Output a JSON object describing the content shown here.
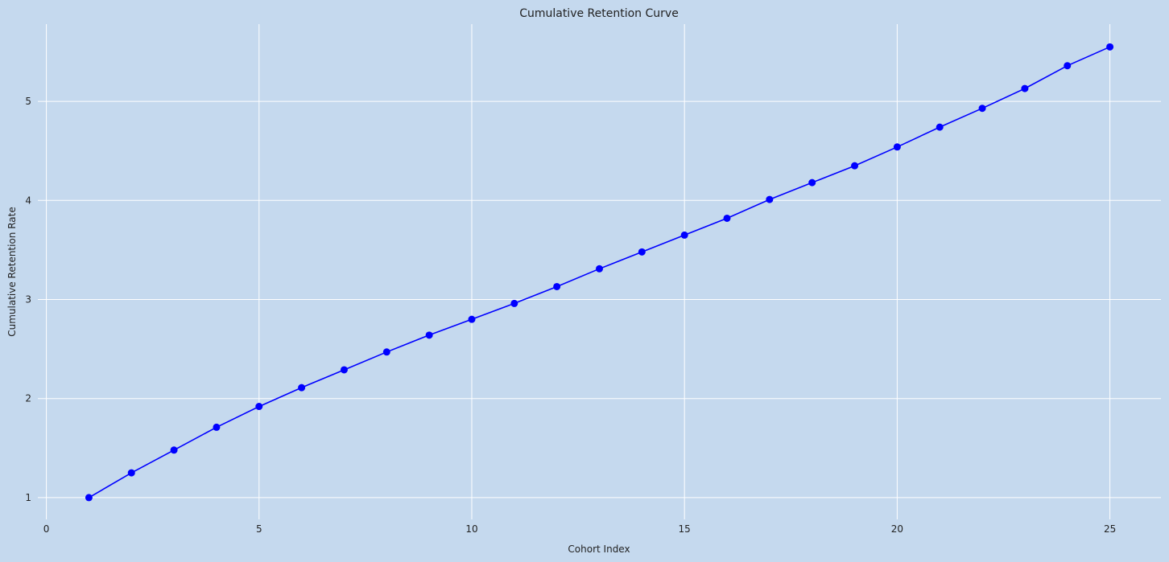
{
  "chart_data": {
    "type": "line",
    "title": "Cumulative Retention Curve",
    "xlabel": "Cohort Index",
    "ylabel": "Cumulative Retention Rate",
    "xlim": [
      -0.2,
      26.2
    ],
    "ylim": [
      0.78,
      5.78
    ],
    "xticks": [
      0,
      5,
      10,
      15,
      20,
      25
    ],
    "yticks": [
      1,
      2,
      3,
      4,
      5
    ],
    "grid": true,
    "colors": {
      "background": "#c5d9ee",
      "grid": "#ffffff",
      "line": "#0000ff"
    },
    "series": [
      {
        "x": [
          1,
          2,
          3,
          4,
          5,
          6,
          7,
          8,
          9,
          10,
          11,
          12,
          13,
          14,
          15,
          16,
          17,
          18,
          19,
          20,
          21,
          22,
          23,
          24,
          25
        ],
        "values": [
          1.0,
          1.25,
          1.48,
          1.71,
          1.92,
          2.11,
          2.29,
          2.47,
          2.64,
          2.8,
          2.96,
          3.13,
          3.31,
          3.48,
          3.65,
          3.82,
          4.01,
          4.18,
          4.35,
          4.54,
          4.74,
          4.93,
          5.13,
          5.36,
          5.55
        ]
      }
    ]
  }
}
